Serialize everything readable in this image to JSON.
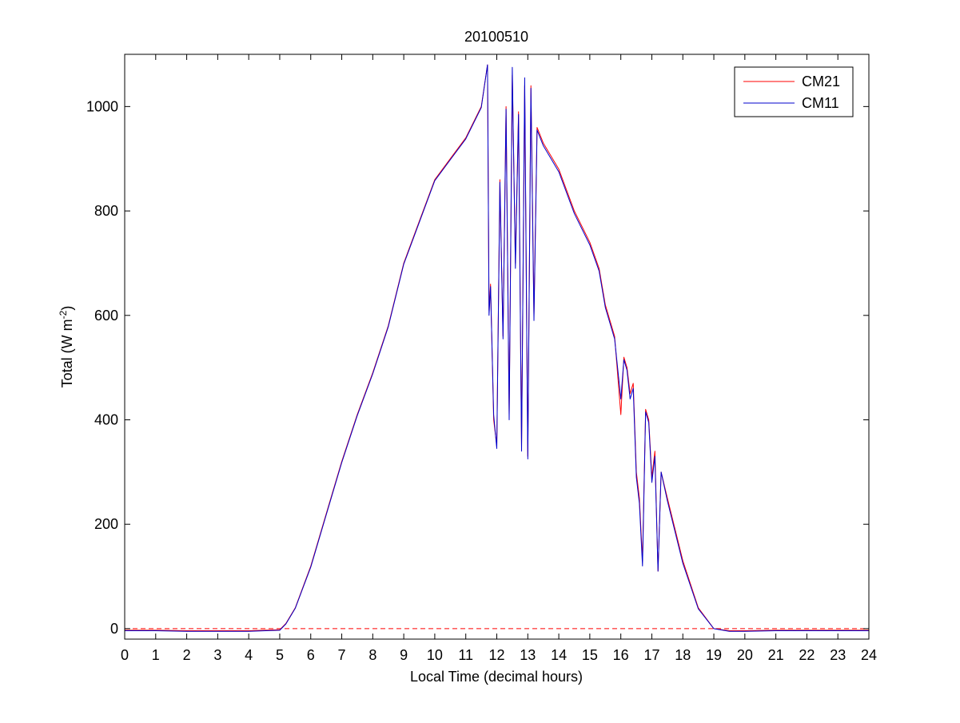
{
  "chart_data": {
    "type": "line",
    "title": "20100510",
    "xlabel": "Local Time (decimal hours)",
    "ylabel_main": "Total (W m",
    "ylabel_sup": "-2",
    "ylabel_close": ")",
    "xlim": [
      0,
      24
    ],
    "ylim": [
      -20,
      1100
    ],
    "xticks": [
      0,
      1,
      2,
      3,
      4,
      5,
      6,
      7,
      8,
      9,
      10,
      11,
      12,
      13,
      14,
      15,
      16,
      17,
      18,
      19,
      20,
      21,
      22,
      23,
      24
    ],
    "yticks": [
      0,
      200,
      400,
      600,
      800,
      1000
    ],
    "grid": false,
    "legend_position": "top-right",
    "zero_reference_line": true,
    "series": [
      {
        "name": "CM21",
        "color": "#ff0000",
        "x": [
          0,
          1,
          2,
          3,
          4,
          5,
          5.2,
          5.5,
          6,
          6.5,
          7,
          7.5,
          8,
          8.5,
          9,
          9.5,
          10,
          10.5,
          11,
          11.5,
          11.7,
          11.75,
          11.8,
          11.9,
          12,
          12.1,
          12.2,
          12.3,
          12.4,
          12.5,
          12.6,
          12.7,
          12.8,
          12.9,
          13,
          13.1,
          13.2,
          13.3,
          13.5,
          14,
          14.5,
          15,
          15.3,
          15.5,
          15.8,
          16,
          16.1,
          16.2,
          16.3,
          16.4,
          16.5,
          16.6,
          16.7,
          16.8,
          16.9,
          17,
          17.1,
          17.2,
          17.3,
          17.5,
          18,
          18.5,
          19,
          19.5,
          20,
          21,
          22,
          23,
          24
        ],
        "y": [
          -3,
          -3,
          -4,
          -4,
          -4,
          -2,
          10,
          40,
          120,
          220,
          320,
          410,
          490,
          580,
          700,
          780,
          860,
          900,
          940,
          1000,
          1080,
          610,
          660,
          400,
          350,
          860,
          560,
          1000,
          410,
          1060,
          700,
          990,
          350,
          1040,
          330,
          1040,
          600,
          960,
          930,
          880,
          800,
          740,
          690,
          620,
          560,
          410,
          520,
          500,
          450,
          470,
          300,
          250,
          130,
          420,
          400,
          290,
          340,
          110,
          300,
          250,
          130,
          40,
          0,
          -4,
          -4,
          -3,
          -3,
          -3,
          -3
        ]
      },
      {
        "name": "CM11",
        "color": "#0000cc",
        "x": [
          0,
          1,
          2,
          3,
          4,
          5,
          5.2,
          5.5,
          6,
          6.5,
          7,
          7.5,
          8,
          8.5,
          9,
          9.5,
          10,
          10.5,
          11,
          11.5,
          11.7,
          11.75,
          11.8,
          11.9,
          12,
          12.1,
          12.2,
          12.3,
          12.4,
          12.5,
          12.6,
          12.7,
          12.8,
          12.9,
          13,
          13.1,
          13.2,
          13.3,
          13.5,
          14,
          14.5,
          15,
          15.3,
          15.5,
          15.8,
          16,
          16.1,
          16.2,
          16.3,
          16.4,
          16.5,
          16.6,
          16.7,
          16.8,
          16.9,
          17,
          17.1,
          17.2,
          17.3,
          17.5,
          18,
          18.5,
          19,
          19.5,
          20,
          21,
          22,
          23,
          24
        ],
        "y": [
          -4,
          -4,
          -5,
          -5,
          -5,
          -3,
          9,
          39,
          118,
          218,
          318,
          408,
          488,
          578,
          698,
          778,
          858,
          898,
          938,
          998,
          1080,
          600,
          655,
          410,
          345,
          855,
          555,
          995,
          400,
          1075,
          690,
          985,
          340,
          1055,
          325,
          1035,
          590,
          955,
          925,
          875,
          795,
          735,
          685,
          615,
          555,
          440,
          515,
          495,
          440,
          460,
          290,
          240,
          120,
          415,
          395,
          280,
          330,
          110,
          300,
          245,
          125,
          38,
          0,
          -5,
          -5,
          -4,
          -4,
          -4,
          -4
        ]
      }
    ]
  }
}
